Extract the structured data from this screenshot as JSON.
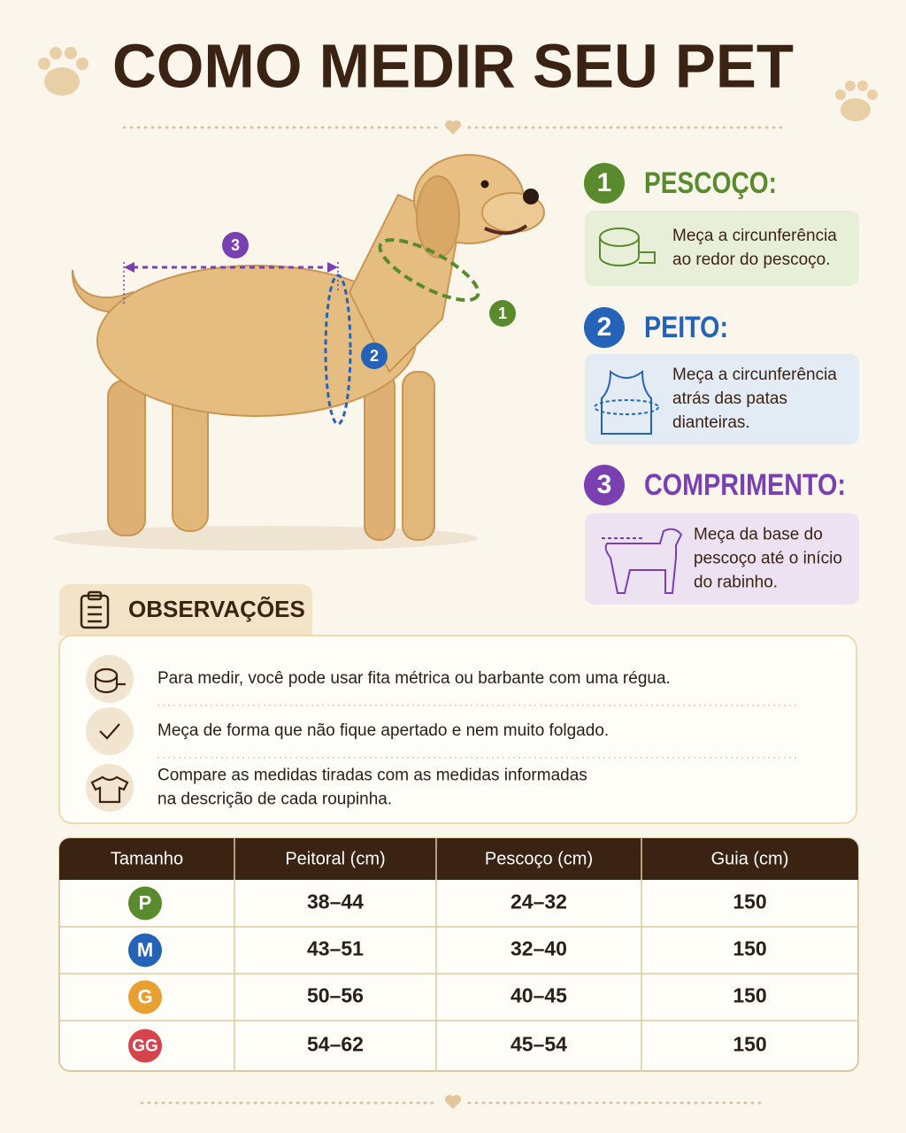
{
  "header": {
    "title": "COMO MEDIR SEU PET"
  },
  "diagram": {
    "markers": [
      "1",
      "2",
      "3"
    ]
  },
  "steps": [
    {
      "number": "1",
      "title": "PESCOÇO:",
      "text": [
        "Meça a circunferência",
        "ao redor do pescoço."
      ],
      "color": "#5a8a2e",
      "box": "#e8efd9"
    },
    {
      "number": "2",
      "title": "PEITO:",
      "text": [
        "Meça a circunferência",
        "atrás das patas",
        "dianteiras."
      ],
      "color": "#2563b8",
      "box": "#e3ebf4"
    },
    {
      "number": "3",
      "title": "COMPRIMENTO:",
      "text": [
        "Meça da base do",
        "pescoço até o início",
        "do rabinho."
      ],
      "color": "#7a3fb0",
      "box": "#ece2f2"
    }
  ],
  "observations": {
    "title": "OBSERVAÇÕES",
    "items": [
      [
        "Para medir, você pode usar fita métrica ou barbante com uma régua."
      ],
      [
        "Meça de forma que não fique apertado e nem muito folgado."
      ],
      [
        "Compare as medidas tiradas com as medidas informadas",
        "na descrição de cada roupinha."
      ]
    ]
  },
  "table": {
    "header": [
      "Tamanho",
      "Peitoral (cm)",
      "Pescoço (cm)",
      "Guia (cm)"
    ],
    "rows": [
      [
        "P",
        "38–44",
        "24–32",
        "150"
      ],
      [
        "M",
        "43–51",
        "32–40",
        "150"
      ],
      [
        "G",
        "50–56",
        "40–45",
        "150"
      ],
      [
        "GG",
        "54–62",
        "45–54",
        "150"
      ]
    ],
    "badge_colors": [
      "#5a8a2e",
      "#2563b8",
      "#e9a032",
      "#d6434c"
    ]
  }
}
